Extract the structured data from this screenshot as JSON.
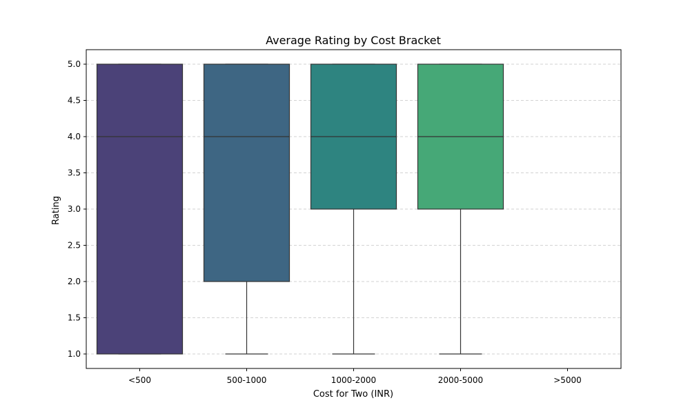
{
  "chart_data": {
    "type": "box",
    "title": "Average Rating by Cost Bracket",
    "xlabel": "Cost for Two (INR)",
    "ylabel": "Rating",
    "categories": [
      "<500",
      "500-1000",
      "1000-2000",
      "2000-5000",
      ">5000"
    ],
    "boxes": [
      {
        "category": "<500",
        "min": 1.0,
        "q1": 1.0,
        "median": 4.0,
        "q3": 5.0,
        "max": 5.0,
        "color": "#4b4278"
      },
      {
        "category": "500-1000",
        "min": 1.0,
        "q1": 2.0,
        "median": 4.0,
        "q3": 5.0,
        "max": 5.0,
        "color": "#3e6683"
      },
      {
        "category": "1000-2000",
        "min": 1.0,
        "q1": 3.0,
        "median": 4.0,
        "q3": 5.0,
        "max": 5.0,
        "color": "#2e8480"
      },
      {
        "category": "2000-5000",
        "min": 1.0,
        "q1": 3.0,
        "median": 4.0,
        "q3": 5.0,
        "max": 5.0,
        "color": "#46a877"
      },
      {
        "category": ">5000",
        "empty": true
      }
    ],
    "ylim": [
      0.8,
      5.2
    ],
    "yticks": [
      "1.0",
      "1.5",
      "2.0",
      "2.5",
      "3.0",
      "3.5",
      "4.0",
      "4.5",
      "5.0"
    ],
    "grid": {
      "y": true,
      "x": false,
      "style": "dashed"
    }
  }
}
